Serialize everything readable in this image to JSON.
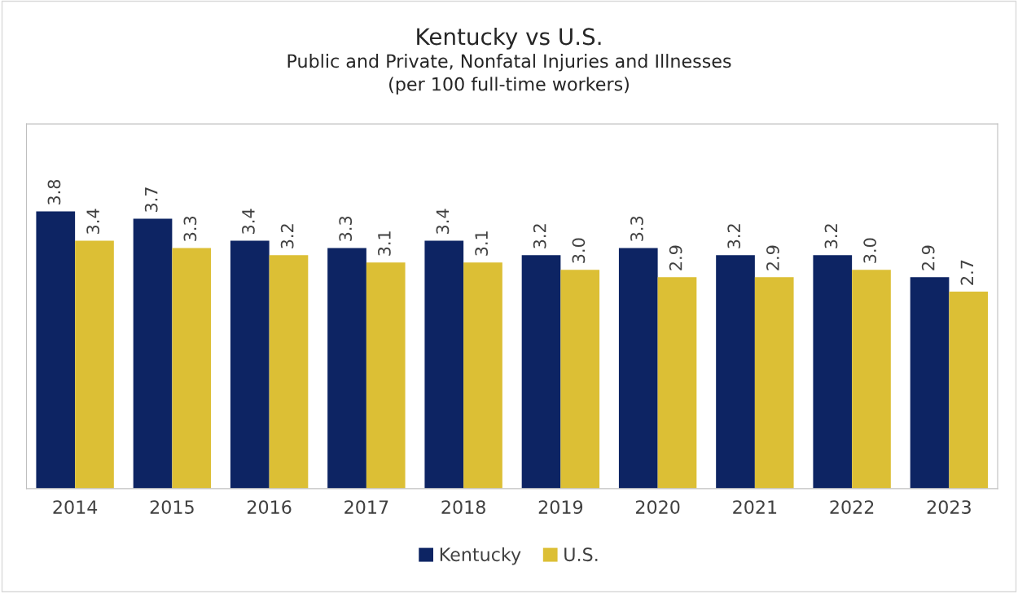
{
  "chart_data": {
    "type": "bar",
    "title": "Kentucky vs U.S.",
    "subtitle": "Public and Private, Nonfatal Injuries and Illnesses\n(per 100 full-time workers)",
    "categories": [
      "2014",
      "2015",
      "2016",
      "2017",
      "2018",
      "2019",
      "2020",
      "2021",
      "2022",
      "2023"
    ],
    "series": [
      {
        "name": "Kentucky",
        "color": "#0d2463",
        "values": [
          3.8,
          3.7,
          3.4,
          3.3,
          3.4,
          3.2,
          3.3,
          3.2,
          3.2,
          2.9
        ],
        "value_labels": [
          "3.8",
          "3.7",
          "3.4",
          "3.3",
          "3.4",
          "3.2",
          "3.3",
          "3.2",
          "3.2",
          "2.9"
        ]
      },
      {
        "name": "U.S.",
        "color": "#dcbf35",
        "values": [
          3.4,
          3.3,
          3.2,
          3.1,
          3.1,
          3.0,
          2.9,
          2.9,
          3.0,
          2.7
        ],
        "value_labels": [
          "3.4",
          "3.3",
          "3.2",
          "3.1",
          "3.1",
          "3.0",
          "2.9",
          "2.9",
          "3.0",
          "2.7"
        ]
      }
    ],
    "ylim": [
      0,
      5
    ],
    "tick_labels": "x",
    "grid": false,
    "legend": "bottom"
  }
}
